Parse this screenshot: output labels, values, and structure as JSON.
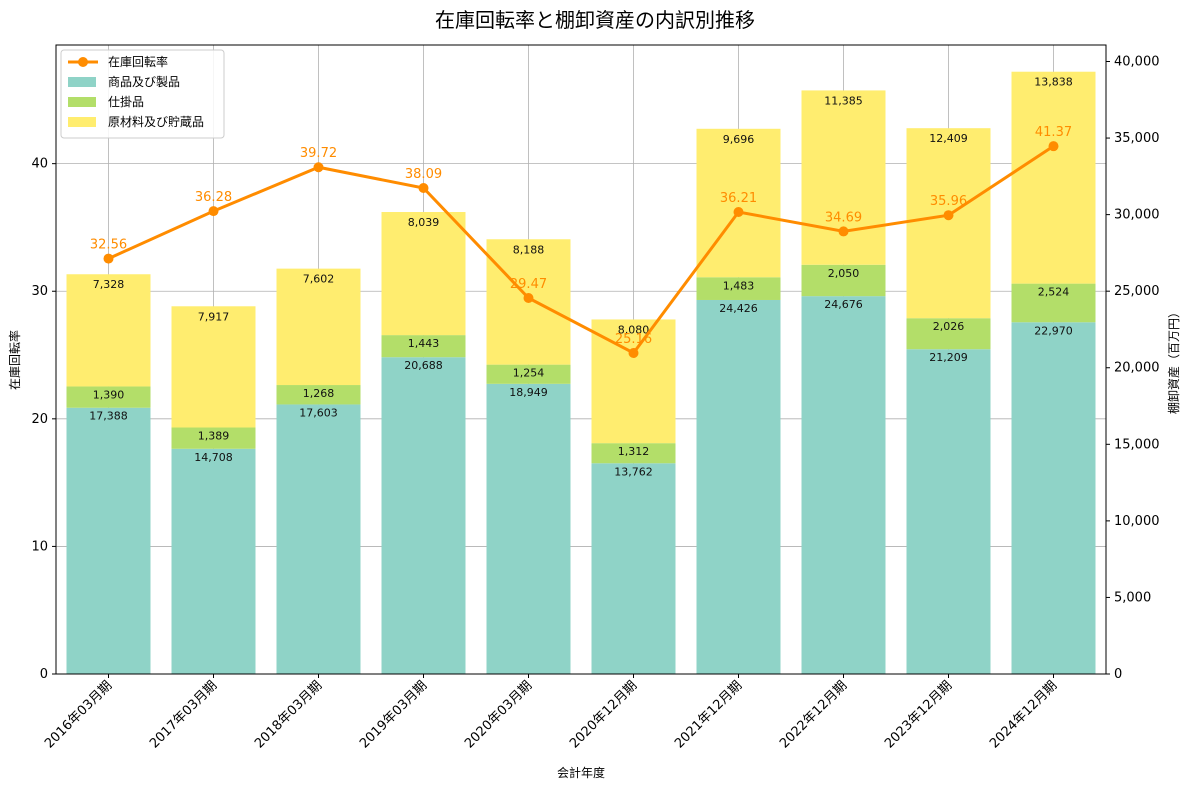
{
  "chart_data": {
    "type": "bar",
    "title": "在庫回転率と棚卸資産の内訳別推移",
    "xlabel": "会計年度",
    "ylabel_left": "在庫回転率",
    "ylabel_right": "棚卸資産（百万円）",
    "ylim_left": [
      0,
      49.3
    ],
    "ylim_right": [
      0,
      41077
    ],
    "yticks_left": [
      "0",
      "10",
      "20",
      "30",
      "40"
    ],
    "yticks_right": [
      "0",
      "5,000",
      "10,000",
      "15,000",
      "20,000",
      "25,000",
      "30,000",
      "35,000",
      "40,000"
    ],
    "grid": true,
    "legend_position": "top-left",
    "categories": [
      "2016年03月期",
      "2017年03月期",
      "2018年03月期",
      "2019年03月期",
      "2020年03月期",
      "2020年12月期",
      "2021年12月期",
      "2022年12月期",
      "2023年12月期",
      "2024年12月期"
    ],
    "series": [
      {
        "name": "商品及び製品",
        "kind": "bar",
        "axis": "right",
        "color": "#8fd3c7",
        "values": [
          17388,
          14708,
          17603,
          20688,
          18949,
          13762,
          24426,
          24676,
          21209,
          22970
        ],
        "labels": [
          "17,388",
          "14,708",
          "17,603",
          "20,688",
          "18,949",
          "13,762",
          "24,426",
          "24,676",
          "21,209",
          "22,970"
        ]
      },
      {
        "name": "仕掛品",
        "kind": "bar",
        "axis": "right",
        "color": "#b3de69",
        "values": [
          1390,
          1389,
          1268,
          1443,
          1254,
          1312,
          1483,
          2050,
          2026,
          2524
        ],
        "labels": [
          "1,390",
          "1,389",
          "1,268",
          "1,443",
          "1,254",
          "1,312",
          "1,483",
          "2,050",
          "2,026",
          "2,524"
        ]
      },
      {
        "name": "原材料及び貯蔵品",
        "kind": "bar",
        "axis": "right",
        "color": "#ffed6f",
        "values": [
          7328,
          7917,
          7602,
          8039,
          8188,
          8080,
          9696,
          11385,
          12409,
          13838
        ],
        "labels": [
          "7,328",
          "7,917",
          "7,602",
          "8,039",
          "8,188",
          "8,080",
          "9,696",
          "11,385",
          "12,409",
          "13,838"
        ]
      },
      {
        "name": "在庫回転率",
        "kind": "line",
        "axis": "left",
        "color": "#ff8c00",
        "values": [
          32.56,
          36.28,
          39.72,
          38.09,
          29.47,
          25.16,
          36.21,
          34.69,
          35.96,
          41.37
        ],
        "labels": [
          "32.56",
          "36.28",
          "39.72",
          "38.09",
          "29.47",
          "25.16",
          "36.21",
          "34.69",
          "35.96",
          "41.37"
        ]
      }
    ]
  }
}
